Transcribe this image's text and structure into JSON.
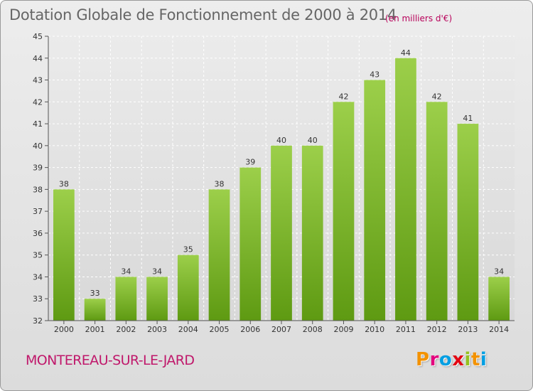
{
  "header": {
    "title": "Dotation Globale de Fonctionnement de 2000 à 2014",
    "unit": "(en milliers d'€)"
  },
  "footer": {
    "commune": "MONTEREAU-SUR-LE-JARD",
    "logo": {
      "text": "Proxiti",
      "letters": [
        {
          "ch": "P",
          "color": "#f39200"
        },
        {
          "ch": "r",
          "color": "#e3007e"
        },
        {
          "ch": "o",
          "color": "#009fe3"
        },
        {
          "ch": "x",
          "color": "#e30613"
        },
        {
          "ch": "i",
          "color": "#95c11f"
        },
        {
          "ch": "t",
          "color": "#f39200"
        },
        {
          "ch": "i",
          "color": "#009fe3"
        }
      ]
    }
  },
  "chart_data": {
    "type": "bar",
    "title": "Dotation Globale de Fonctionnement de 2000 à 2014",
    "subtitle": "(en milliers d'€)",
    "xlabel": "",
    "ylabel": "",
    "categories": [
      "2000",
      "2001",
      "2002",
      "2003",
      "2004",
      "2005",
      "2006",
      "2007",
      "2008",
      "2009",
      "2010",
      "2011",
      "2012",
      "2013",
      "2014"
    ],
    "values": [
      38,
      33,
      34,
      34,
      35,
      38,
      39,
      40,
      40,
      42,
      43,
      44,
      42,
      41,
      34
    ],
    "ylim": [
      32,
      45
    ],
    "yticks": [
      32,
      33,
      34,
      35,
      36,
      37,
      38,
      39,
      40,
      41,
      42,
      43,
      44,
      45
    ],
    "grid": true,
    "legend": "none",
    "colors": {
      "bar_top": "#9ccf4a",
      "bar_bottom": "#5e9a12",
      "grid": "#ffffff",
      "plot_bg_top": "#ebebeb",
      "plot_bg_bottom": "#d8d8d8"
    }
  }
}
